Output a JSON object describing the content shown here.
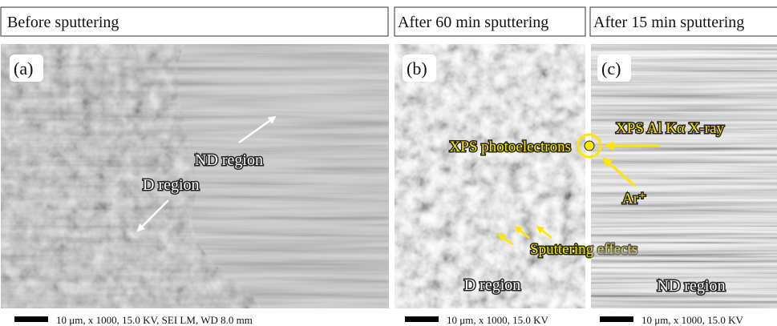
{
  "panels": [
    {
      "header": "Before sputtering",
      "label": "(a)",
      "annotations": [
        "ND region",
        "D region"
      ],
      "scale_bar": "10 μm, x 1000, 15.0 KV, SEI LM, WD 8.0 mm"
    },
    {
      "header": "After 60 min sputtering",
      "label": "(b)",
      "annotations": [
        "XPS photoelectrons",
        "Sputtering effects",
        "D region"
      ],
      "scale_bar": "10 μm, x 1000, 15.0 KV"
    },
    {
      "header": "After 15 min sputtering",
      "label": "(c)",
      "annotations": [
        "XPS Al Kα X-ray",
        "Ar⁺",
        "ND region"
      ],
      "scale_bar": "10 μm, x 1000, 15.0 KV"
    }
  ]
}
